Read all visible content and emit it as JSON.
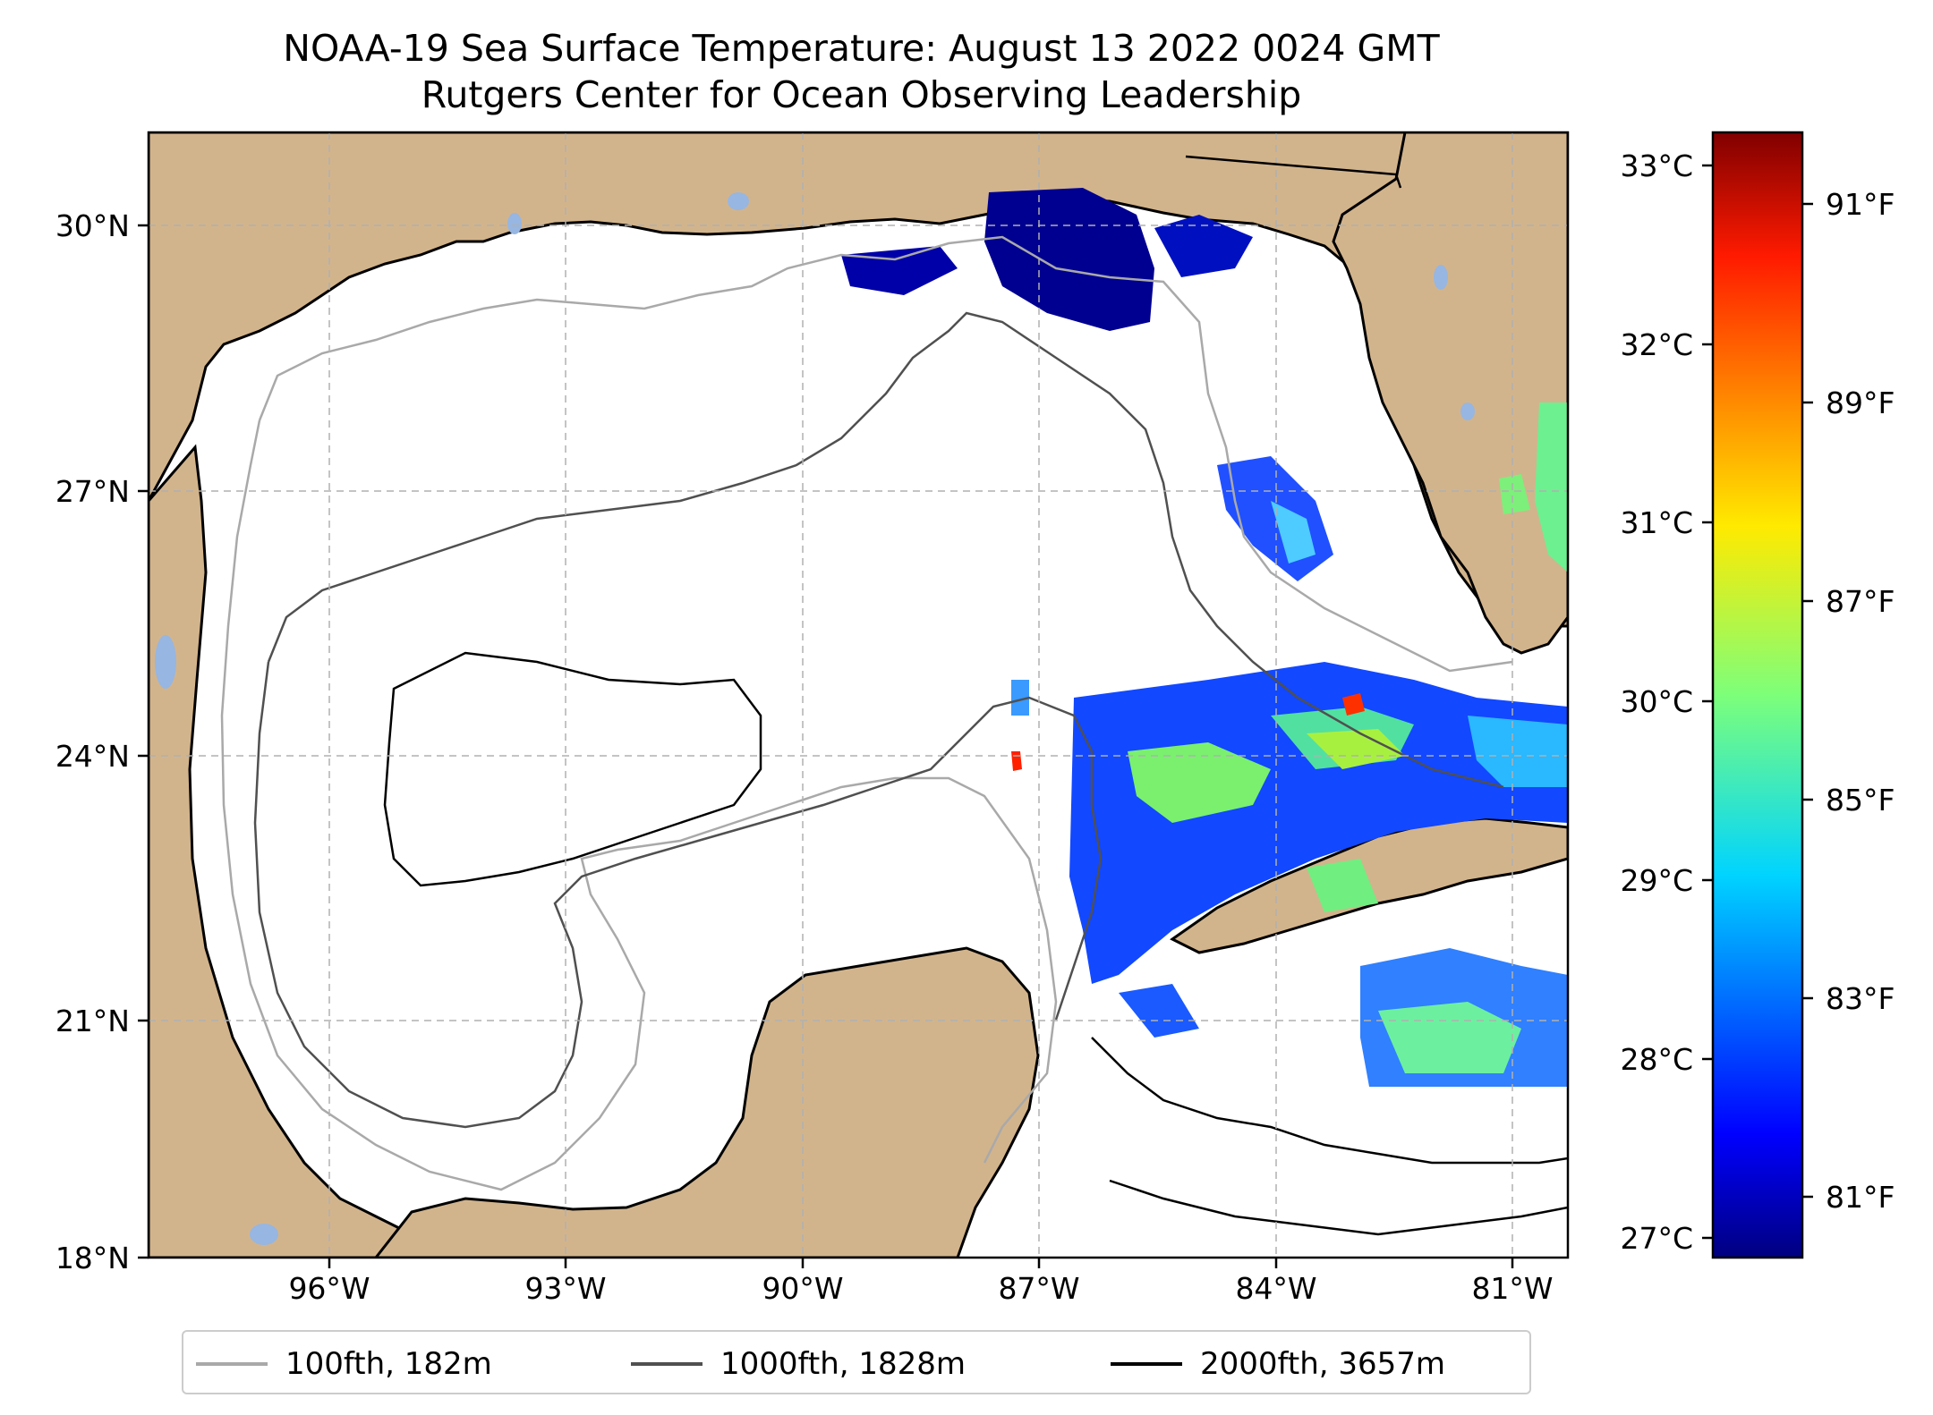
{
  "title": "NOAA-19 Sea Surface Temperature: August 13 2022 0024 GMT",
  "subtitle": "Rutgers Center for Ocean Observing Leadership",
  "map": {
    "lat_labels": [
      "30°N",
      "27°N",
      "24°N",
      "21°N",
      "18°N"
    ],
    "lon_labels": [
      "96°W",
      "93°W",
      "90°W",
      "87°W",
      "84°W",
      "81°W"
    ],
    "colors": {
      "land": "#d2b48c",
      "water": "#ffffff",
      "lakes": "#97b6e1",
      "grid": "#b0b0b0"
    }
  },
  "colorbar": {
    "celsius_labels": [
      "33°C",
      "32°C",
      "31°C",
      "30°C",
      "29°C",
      "28°C",
      "27°C"
    ],
    "fahrenheit_labels": [
      "91°F",
      "89°F",
      "87°F",
      "85°F",
      "83°F",
      "81°F"
    ],
    "colormap": "jet"
  },
  "legend": [
    {
      "label": "100fth, 182m",
      "color": "#a9a9a9"
    },
    {
      "label": "1000fth, 1828m",
      "color": "#505050"
    },
    {
      "label": "2000fth, 3657m",
      "color": "#000000"
    }
  ]
}
